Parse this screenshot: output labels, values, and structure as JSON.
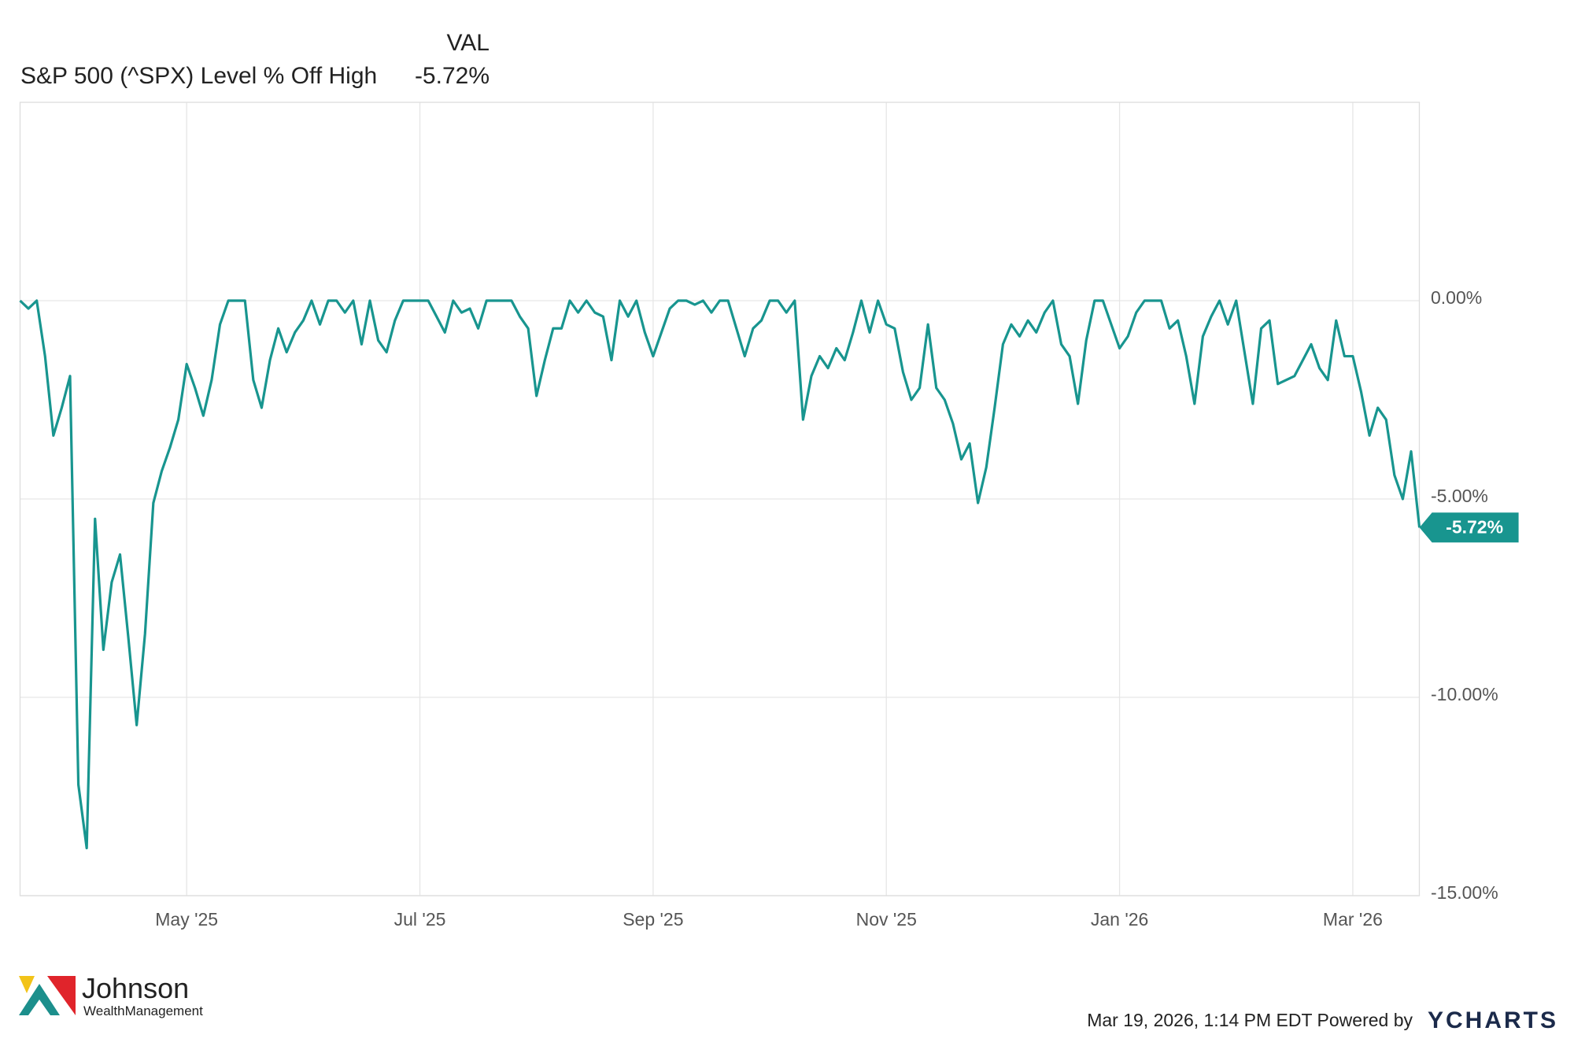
{
  "chart_data": {
    "type": "line",
    "title": "S&P 500 (^SPX) Level % Off High",
    "column_header": "VAL",
    "x": [
      "Mar '25",
      "Mar '25",
      "Mar '25",
      "Mar '25",
      "Mar '25",
      "Mar '25",
      "Apr '25",
      "Apr '25",
      "Apr '25",
      "Apr '25",
      "Apr '25",
      "Apr '25",
      "Apr '25",
      "Apr '25",
      "Apr '25",
      "Apr '25",
      "Apr '25",
      "Apr '25",
      "Apr '25",
      "Apr '25",
      "May '25",
      "May '25",
      "May '25",
      "May '25",
      "May '25",
      "May '25",
      "May '25",
      "May '25",
      "May '25",
      "May '25",
      "May '25",
      "May '25",
      "May '25",
      "May '25",
      "Jun '25",
      "Jun '25",
      "Jun '25",
      "Jun '25",
      "Jun '25",
      "Jun '25",
      "Jun '25",
      "Jun '25",
      "Jun '25",
      "Jun '25",
      "Jun '25",
      "Jun '25",
      "Jun '25",
      "Jun '25",
      "Jul '25",
      "Jul '25",
      "Jul '25",
      "Jul '25",
      "Jul '25",
      "Jul '25",
      "Jul '25",
      "Jul '25",
      "Jul '25",
      "Jul '25",
      "Jul '25",
      "Jul '25",
      "Jul '25",
      "Jul '25",
      "Aug '25",
      "Aug '25",
      "Aug '25",
      "Aug '25",
      "Aug '25",
      "Aug '25",
      "Aug '25",
      "Aug '25",
      "Aug '25",
      "Aug '25",
      "Aug '25",
      "Aug '25",
      "Aug '25",
      "Aug '25",
      "Sep '25",
      "Sep '25",
      "Sep '25",
      "Sep '25",
      "Sep '25",
      "Sep '25",
      "Sep '25",
      "Sep '25",
      "Sep '25",
      "Sep '25",
      "Sep '25",
      "Sep '25",
      "Sep '25",
      "Sep '25",
      "Oct '25",
      "Oct '25",
      "Oct '25",
      "Oct '25",
      "Oct '25",
      "Oct '25",
      "Oct '25",
      "Oct '25",
      "Oct '25",
      "Oct '25",
      "Oct '25",
      "Oct '25",
      "Oct '25",
      "Oct '25",
      "Nov '25",
      "Nov '25",
      "Nov '25",
      "Nov '25",
      "Nov '25",
      "Nov '25",
      "Nov '25",
      "Nov '25",
      "Nov '25",
      "Nov '25",
      "Nov '25",
      "Nov '25",
      "Nov '25",
      "Nov '25",
      "Dec '25",
      "Dec '25",
      "Dec '25",
      "Dec '25",
      "Dec '25",
      "Dec '25",
      "Dec '25",
      "Dec '25",
      "Dec '25",
      "Dec '25",
      "Dec '25",
      "Dec '25",
      "Dec '25",
      "Dec '25",
      "Jan '26",
      "Jan '26",
      "Jan '26",
      "Jan '26",
      "Jan '26",
      "Jan '26",
      "Jan '26",
      "Jan '26",
      "Jan '26",
      "Jan '26",
      "Jan '26",
      "Jan '26",
      "Jan '26",
      "Jan '26",
      "Feb '26",
      "Feb '26",
      "Feb '26",
      "Feb '26",
      "Feb '26",
      "Feb '26",
      "Feb '26",
      "Feb '26",
      "Feb '26",
      "Feb '26",
      "Feb '26",
      "Feb '26",
      "Feb '26",
      "Feb '26",
      "Mar '26",
      "Mar '26",
      "Mar '26",
      "Mar '26",
      "Mar '26",
      "Mar '26",
      "Mar '26",
      "Mar '26",
      "Mar '26"
    ],
    "series": [
      {
        "name": "S&P 500 (^SPX) Level % Off High",
        "color": "#18958f",
        "last_label": "-5.72%",
        "values": [
          0,
          -0.2,
          0,
          -1.4,
          -3.4,
          -2.7,
          -1.9,
          -12.2,
          -13.8,
          -5.5,
          -8.8,
          -7.1,
          -6.4,
          -8.5,
          -10.7,
          -8.4,
          -5.1,
          -4.3,
          -3.7,
          -3.0,
          -1.6,
          -2.2,
          -2.9,
          -2.0,
          -0.6,
          0,
          0,
          0,
          -2.0,
          -2.7,
          -1.5,
          -0.7,
          -1.3,
          -0.8,
          -0.5,
          0,
          -0.6,
          0,
          0,
          -0.3,
          0,
          -1.1,
          0,
          -1.0,
          -1.3,
          -0.5,
          0,
          0,
          0,
          0,
          -0.4,
          -0.8,
          0,
          -0.3,
          -0.2,
          -0.7,
          0,
          0,
          0,
          0,
          -0.4,
          -0.7,
          -2.4,
          -1.5,
          -0.7,
          -0.7,
          0,
          -0.3,
          0,
          -0.3,
          -0.4,
          -1.5,
          0,
          -0.4,
          0,
          -0.8,
          -1.4,
          -0.8,
          -0.2,
          0,
          0,
          -0.1,
          0,
          -0.3,
          0,
          0,
          -0.7,
          -1.4,
          -0.7,
          -0.5,
          0,
          0,
          -0.3,
          0,
          -3.0,
          -1.9,
          -1.4,
          -1.7,
          -1.2,
          -1.5,
          -0.8,
          0,
          -0.8,
          0,
          -0.6,
          -0.7,
          -1.8,
          -2.5,
          -2.2,
          -0.6,
          -2.2,
          -2.5,
          -3.1,
          -4.0,
          -3.6,
          -5.1,
          -4.2,
          -2.7,
          -1.1,
          -0.6,
          -0.9,
          -0.5,
          -0.8,
          -0.3,
          0,
          -1.1,
          -1.4,
          -2.6,
          -1.0,
          0,
          0,
          -0.6,
          -1.2,
          -0.9,
          -0.3,
          0,
          0,
          0,
          -0.7,
          -0.5,
          -1.4,
          -2.6,
          -0.9,
          -0.4,
          0,
          -0.6,
          0,
          -1.3,
          -2.6,
          -0.7,
          -0.5,
          -2.1,
          -2.0,
          -1.9,
          -1.5,
          -1.1,
          -1.7,
          -2.0,
          -0.5,
          -1.4,
          -1.4,
          -2.3,
          -3.4,
          -2.7,
          -3.0,
          -4.4,
          -5.0,
          -3.8,
          -5.72
        ]
      }
    ],
    "xticks": [
      "May '25",
      "Jul '25",
      "Sep '25",
      "Nov '25",
      "Jan '26",
      "Mar '26"
    ],
    "ylim": [
      -15,
      5
    ],
    "yticks": [
      {
        "value": 0,
        "label": "0.00%"
      },
      {
        "value": -5,
        "label": "-5.00%"
      },
      {
        "value": -10,
        "label": "-10.00%"
      },
      {
        "value": -15,
        "label": "-15.00%"
      }
    ],
    "grid": true
  },
  "footer": {
    "timestamp": "Mar 19, 2026, 1:14 PM EDT Powered by",
    "brand": "YCHARTS"
  },
  "logo": {
    "name": "Johnson",
    "tagline": "WealthManagement"
  }
}
